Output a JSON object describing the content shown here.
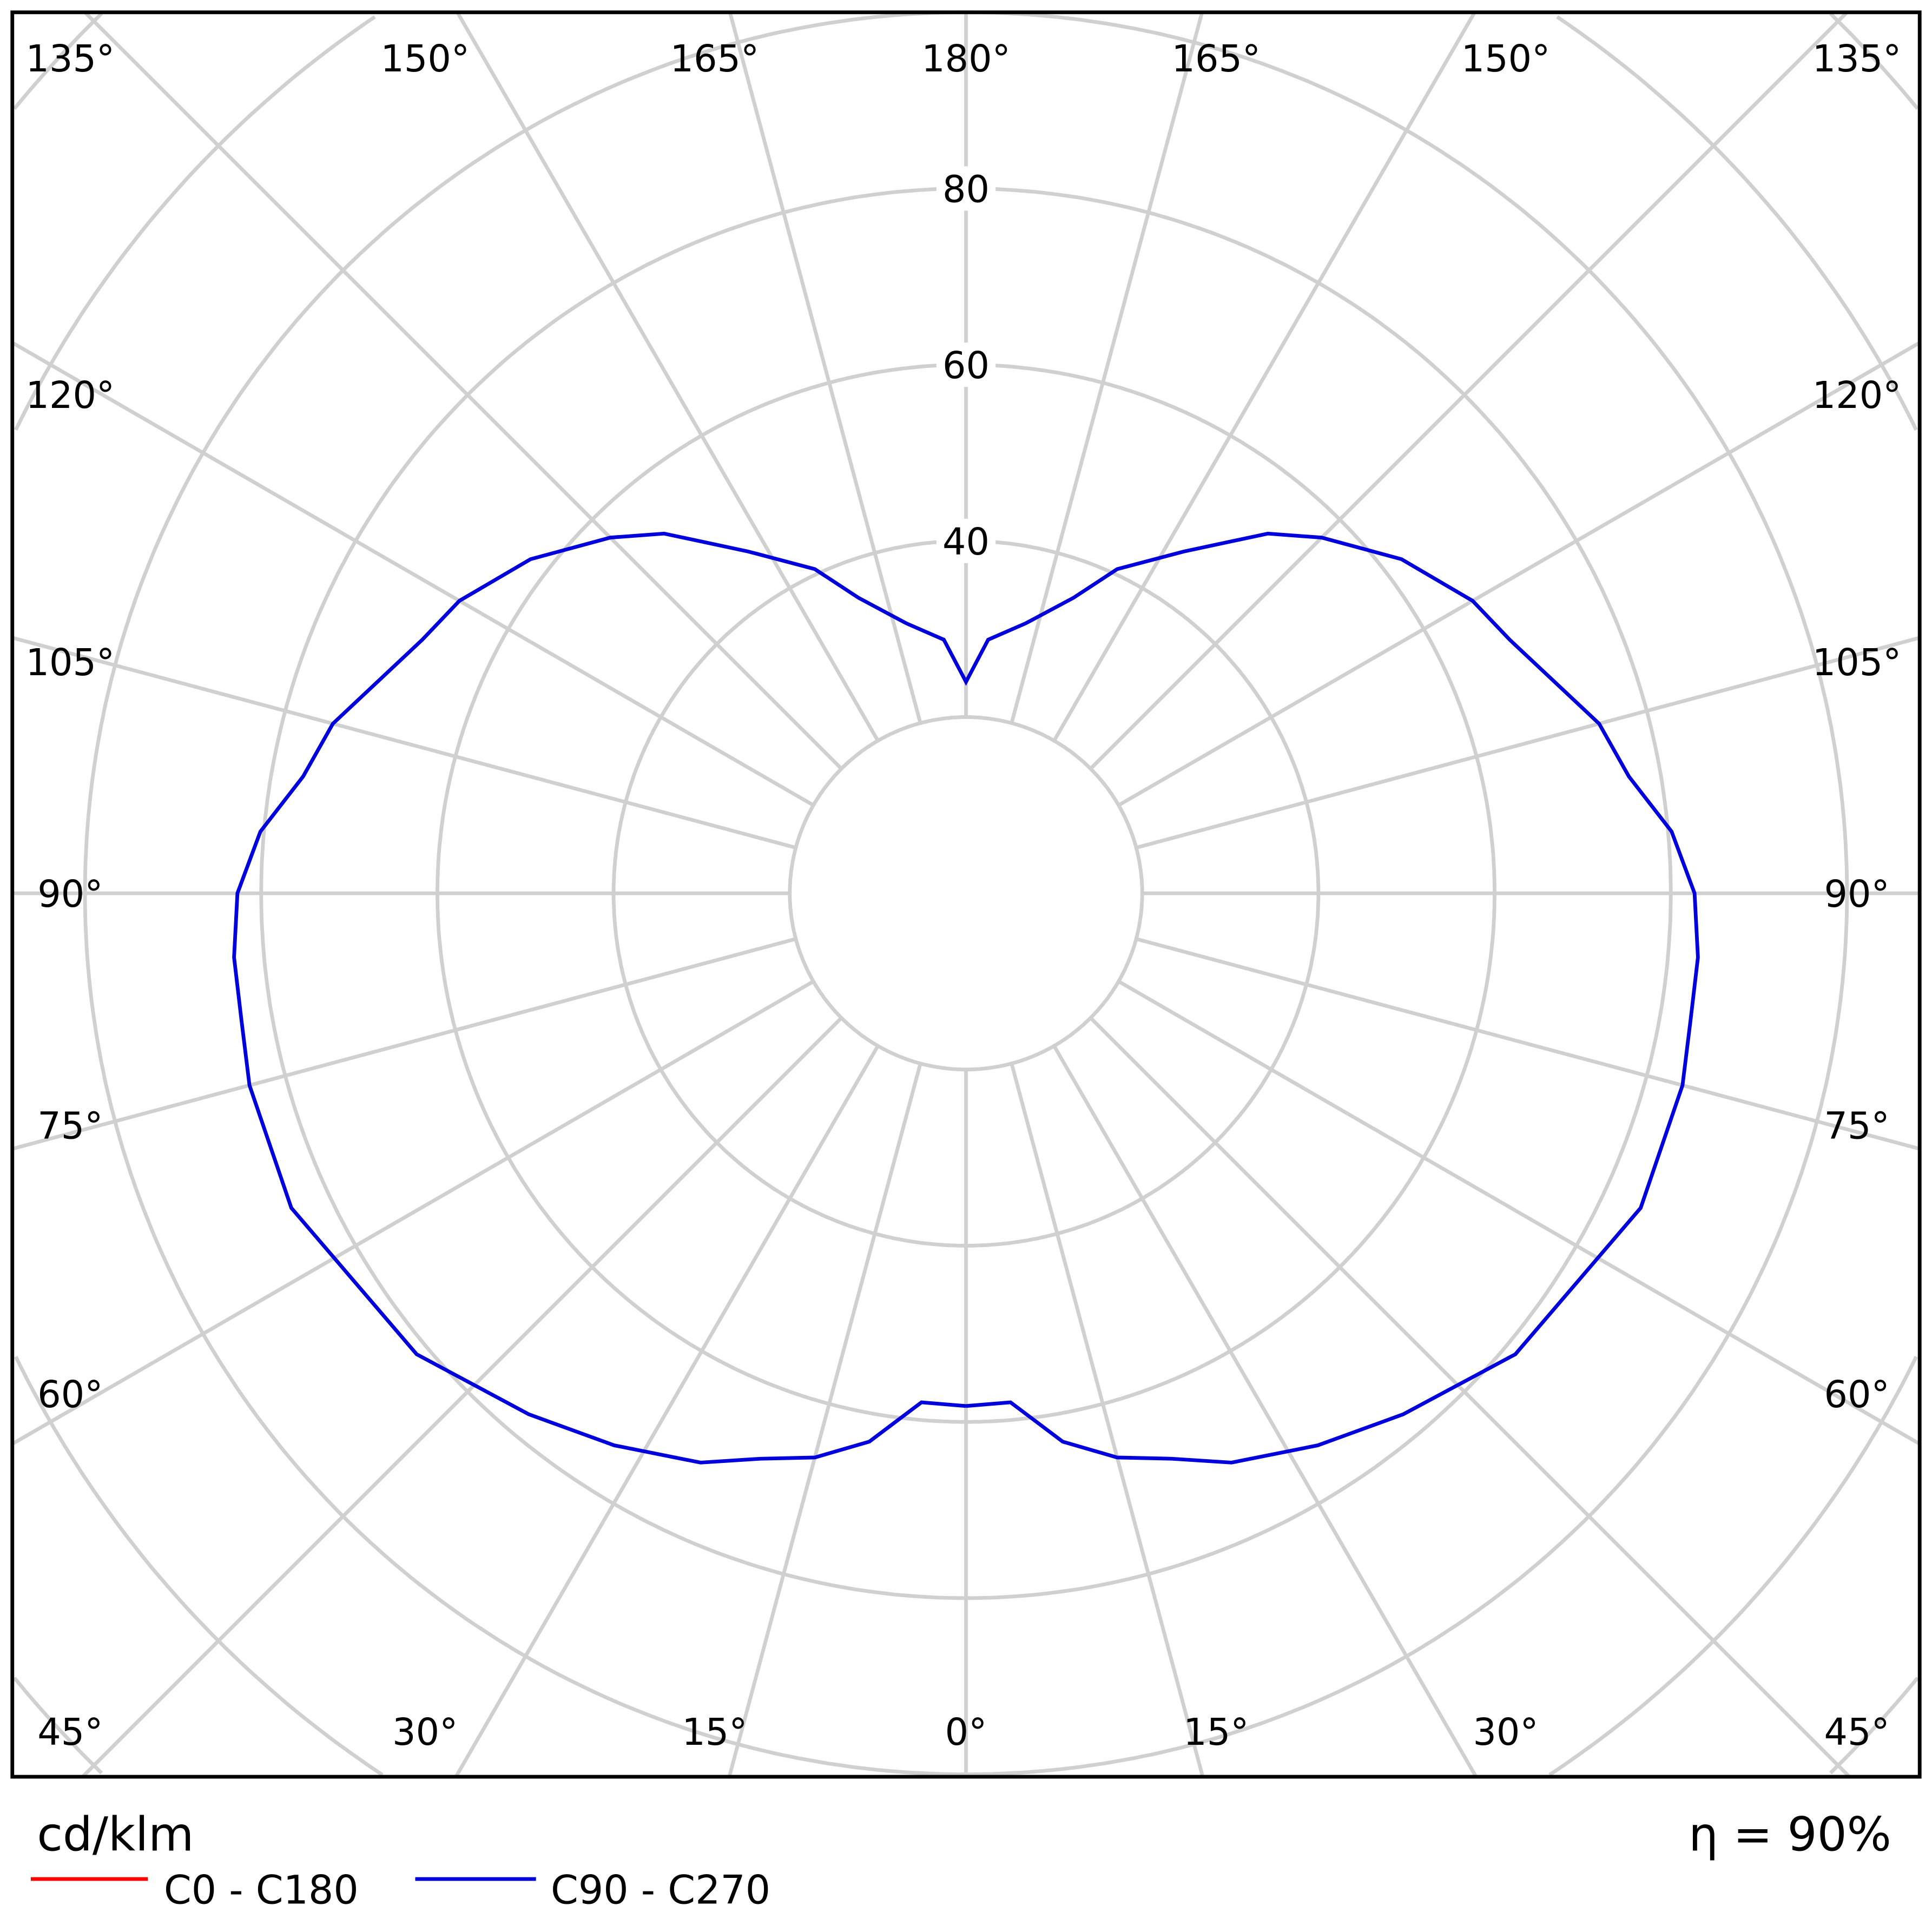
{
  "chart_data": {
    "type": "polar",
    "unit_label": "cd/klm",
    "efficiency_label": "η = 90%",
    "radial_ticks": [
      "40",
      "60",
      "80"
    ],
    "radial_tick_values": [
      40,
      60,
      80
    ],
    "radial_grid_step": 20,
    "inner_radius_value": 20,
    "angle_labels_top": [
      "135°",
      "150°",
      "165°",
      "180°",
      "165°",
      "150°",
      "135°"
    ],
    "angle_labels_left": [
      "120°",
      "105°",
      "90°",
      "75°",
      "60°"
    ],
    "angle_labels_right": [
      "120°",
      "105°",
      "90°",
      "75°",
      "60°"
    ],
    "angle_labels_bottom": [
      "45°",
      "30°",
      "15°",
      "0°",
      "15°",
      "30°",
      "45°"
    ],
    "grid": true,
    "legend_position": "bottom-left",
    "series": [
      {
        "name": "C0 - C180",
        "color": "#ff0000",
        "angles": [],
        "values": []
      },
      {
        "name": "C90 - C270",
        "color": "#0000dd",
        "angles": [
          0,
          5,
          10,
          15,
          20,
          25,
          32.5,
          40,
          50,
          65,
          75,
          80,
          85,
          90,
          95,
          100,
          105,
          115,
          120,
          127.5,
          135,
          140,
          147.5,
          155,
          160,
          167.5,
          175,
          180
        ],
        "values": [
          58.2,
          58,
          63.2,
          66.3,
          68.3,
          71.3,
          74.3,
          77.2,
          81.4,
          84.5,
          84.2,
          83.5,
          83.4,
          82.7,
          80.4,
          76.4,
          74.4,
          68.1,
          66.4,
          62.3,
          57.1,
          53.3,
          46,
          40.6,
          35.7,
          31.4,
          28.9,
          24
        ]
      }
    ]
  }
}
